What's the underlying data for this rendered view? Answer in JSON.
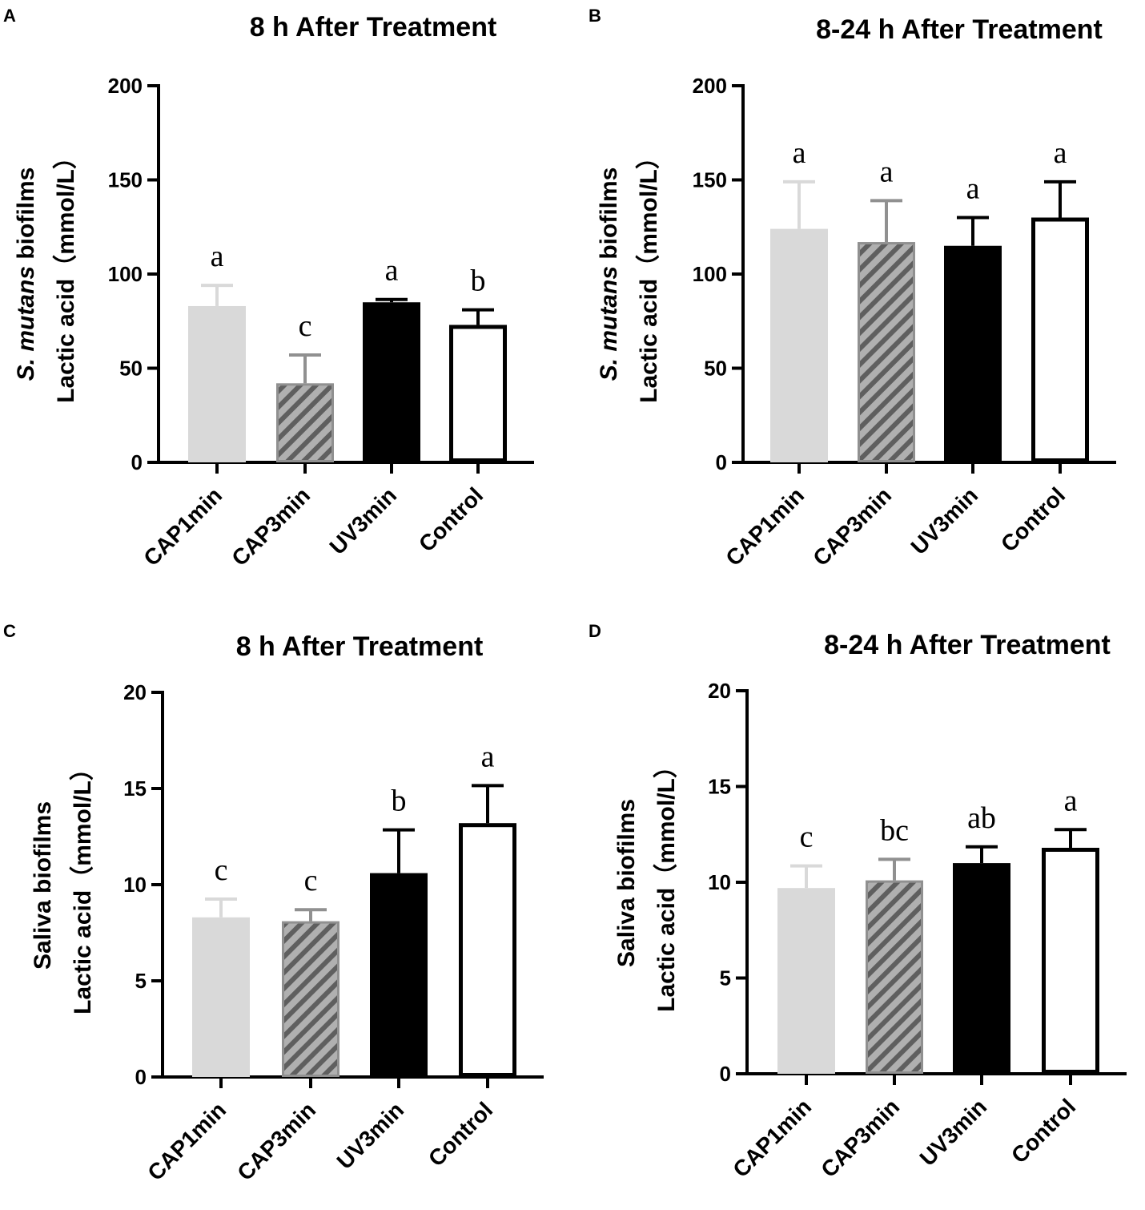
{
  "figure": {
    "colors": {
      "CAP1min": "#d9d9d9",
      "CAP3min_base": "#b0b0b0",
      "CAP3min_stripe": "#5f5f5f",
      "UV3min": "#000000",
      "Control": "#ffffff",
      "axis": "#000000"
    }
  },
  "chart_data": [
    {
      "panel": "A",
      "type": "bar",
      "title": "8 h After Treatment",
      "ylabel_line1_italic": "S. mutans",
      "ylabel_line1_rest": " biofilms",
      "ylabel_line2": "Lactic acid（mmol/L）",
      "categories": [
        "CAP1min",
        "CAP3min",
        "UV3min",
        "Control"
      ],
      "values": [
        83,
        42,
        85,
        73
      ],
      "errors": [
        11,
        15,
        1.5,
        8
      ],
      "significance": [
        "a",
        "c",
        "a",
        "b"
      ],
      "ylim": [
        0,
        200
      ],
      "yticks": [
        0,
        50,
        100,
        150,
        200
      ]
    },
    {
      "panel": "B",
      "type": "bar",
      "title": "8-24 h After Treatment",
      "ylabel_line1_italic": "S. mutans",
      "ylabel_line1_rest": " biofilms",
      "ylabel_line2": "Lactic acid（mmol/L）",
      "categories": [
        "CAP1min",
        "CAP3min",
        "UV3min",
        "Control"
      ],
      "values": [
        124,
        117,
        115,
        130
      ],
      "errors": [
        25,
        22,
        15,
        19
      ],
      "significance": [
        "a",
        "a",
        "a",
        "a"
      ],
      "ylim": [
        0,
        200
      ],
      "yticks": [
        0,
        50,
        100,
        150,
        200
      ]
    },
    {
      "panel": "C",
      "type": "bar",
      "title": "8 h After Treatment",
      "ylabel_line1_italic": "",
      "ylabel_line1_rest": "Saliva biofilms",
      "ylabel_line2": "Lactic acid（mmol/L）",
      "categories": [
        "CAP1min",
        "CAP3min",
        "UV3min",
        "Control"
      ],
      "values": [
        8.3,
        8.1,
        10.6,
        13.2
      ],
      "errors": [
        0.95,
        0.6,
        2.25,
        1.95
      ],
      "significance": [
        "c",
        "c",
        "b",
        "a"
      ],
      "ylim": [
        0,
        20
      ],
      "yticks": [
        0,
        5,
        10,
        15,
        20
      ]
    },
    {
      "panel": "D",
      "type": "bar",
      "title": "8-24 h After Treatment",
      "ylabel_line1_italic": "",
      "ylabel_line1_rest": "Saliva biofilms",
      "ylabel_line2": "Lactic acid（mmol/L）",
      "categories": [
        "CAP1min",
        "CAP3min",
        "UV3min",
        "Control"
      ],
      "values": [
        9.7,
        10.1,
        11.0,
        11.8
      ],
      "errors": [
        1.15,
        1.1,
        0.85,
        0.95
      ],
      "significance": [
        "c",
        "bc",
        "ab",
        "a"
      ],
      "ylim": [
        0,
        20
      ],
      "yticks": [
        0,
        5,
        10,
        15,
        20
      ]
    }
  ]
}
